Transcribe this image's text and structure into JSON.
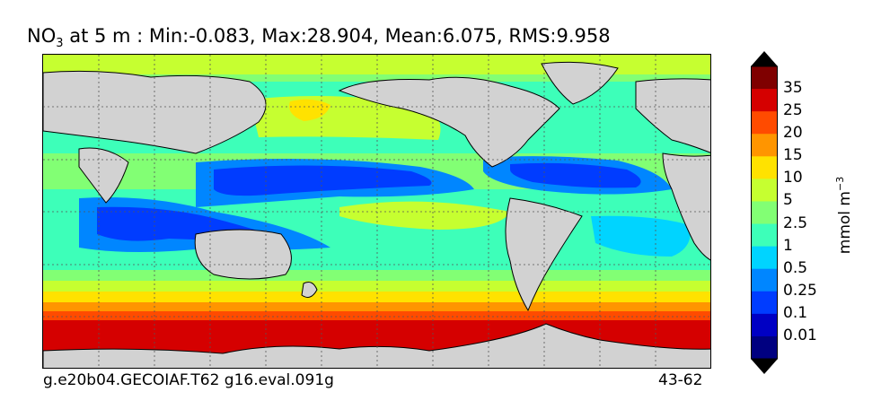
{
  "title": {
    "species": "NO",
    "subscript": "3",
    "rest": " at 5 m : Min:-0.083, Max:28.904, Mean:6.075, RMS:9.958"
  },
  "footer": {
    "case": "g.e20b04.GECOIAF.T62 g16.eval.091g",
    "years": "43-62"
  },
  "colorbar": {
    "units_main": "mmol m",
    "units_exp": "−3",
    "labels": [
      "35",
      "25",
      "20",
      "15",
      "10",
      "5",
      "2.5",
      "1",
      "0.5",
      "0.25",
      "0.1",
      "0.01"
    ],
    "colors_top_to_bottom": [
      "#7f0000",
      "#d50000",
      "#ff4b00",
      "#ff9500",
      "#ffe200",
      "#c6ff30",
      "#82ff74",
      "#3dffb9",
      "#00d4ff",
      "#0086ff",
      "#003cff",
      "#0000c4",
      "#000080"
    ]
  },
  "colors": {
    "land": "#d2d2d2",
    "grid": "#555555"
  }
}
